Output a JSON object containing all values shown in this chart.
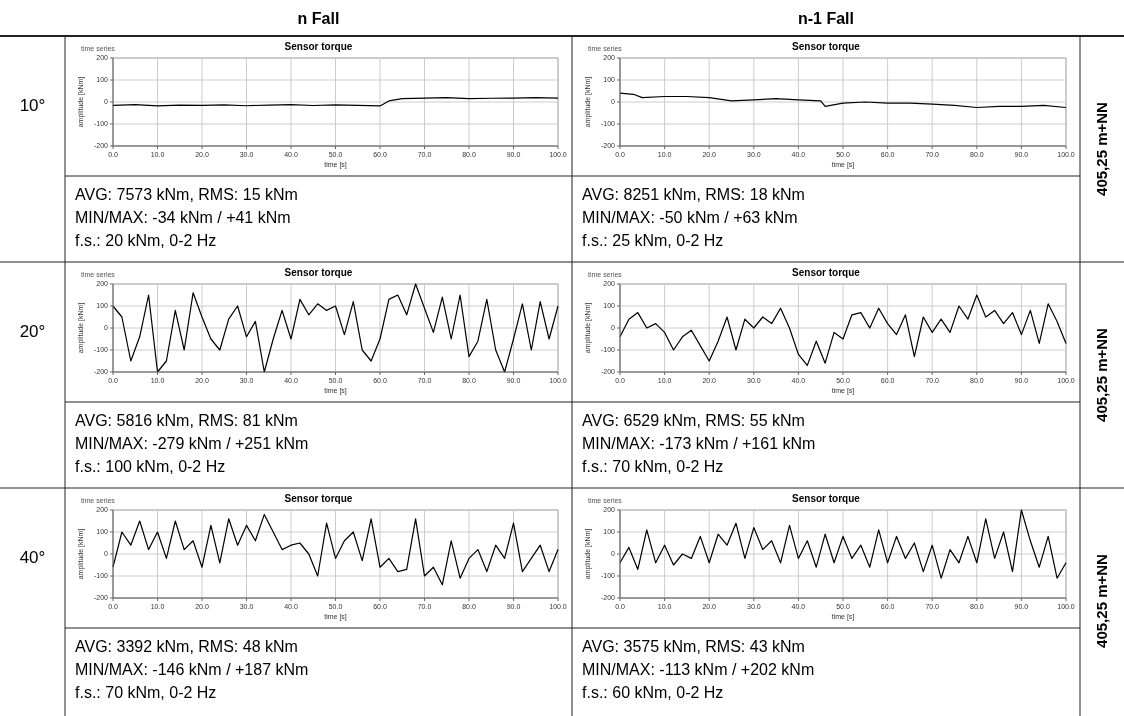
{
  "chart_data": [
    {
      "type": "line",
      "title": "Sensor torque",
      "subtitle": "time series",
      "xlabel": "time [s]",
      "ylabel": "amplitude [kNm]",
      "color": "#000000",
      "grid": true,
      "marker": "none",
      "line_style": "solid",
      "x": [
        0,
        5,
        10,
        15,
        20,
        25,
        30,
        35,
        40,
        45,
        50,
        55,
        60,
        62,
        65,
        70,
        75,
        80,
        85,
        90,
        95,
        100
      ],
      "values": [
        -15,
        -12,
        -18,
        -14,
        -15,
        -13,
        -17,
        -14,
        -12,
        -16,
        -13,
        -15,
        -18,
        5,
        15,
        18,
        20,
        15,
        17,
        18,
        20,
        18
      ],
      "xlim": [
        0,
        100
      ],
      "xticks": [
        {
          "value": 0,
          "label": "0.0"
        },
        {
          "value": 10,
          "label": "10.0"
        },
        {
          "value": 20,
          "label": "20.0"
        },
        {
          "value": 30,
          "label": "30.0"
        },
        {
          "value": 40,
          "label": "40.0"
        },
        {
          "value": 50,
          "label": "50.0"
        },
        {
          "value": 60,
          "label": "60.0"
        },
        {
          "value": 70,
          "label": "70.0"
        },
        {
          "value": 80,
          "label": "80.0"
        },
        {
          "value": 90,
          "label": "90.0"
        },
        {
          "value": 100,
          "label": "100.0"
        }
      ],
      "ylim": [
        -200,
        200
      ],
      "yticks": [
        -200,
        -100,
        0,
        100,
        200
      ],
      "annotations": [
        "AVG: 7573 kNm, RMS: 15 kNm",
        "MIN/MAX: -34 kNm / +41 kNm",
        "f.s.: 20 kNm, 0-2 Hz"
      ]
    },
    {
      "type": "line",
      "title": "Sensor torque",
      "subtitle": "time series",
      "xlabel": "time [s]",
      "ylabel": "amplitude [kNm]",
      "color": "#000000",
      "grid": true,
      "marker": "none",
      "line_style": "solid",
      "x": [
        0,
        3,
        5,
        10,
        15,
        20,
        25,
        30,
        35,
        40,
        45,
        46,
        50,
        55,
        60,
        65,
        70,
        75,
        80,
        85,
        90,
        95,
        100
      ],
      "values": [
        40,
        35,
        20,
        25,
        25,
        20,
        5,
        10,
        15,
        10,
        5,
        -20,
        -5,
        0,
        -5,
        -5,
        -10,
        -15,
        -25,
        -20,
        -20,
        -15,
        -25
      ],
      "xlim": [
        0,
        100
      ],
      "xticks": [
        {
          "value": 0,
          "label": "0.0"
        },
        {
          "value": 10,
          "label": "10.0"
        },
        {
          "value": 20,
          "label": "20.0"
        },
        {
          "value": 30,
          "label": "30.0"
        },
        {
          "value": 40,
          "label": "40.0"
        },
        {
          "value": 50,
          "label": "50.0"
        },
        {
          "value": 60,
          "label": "60.0"
        },
        {
          "value": 70,
          "label": "70.0"
        },
        {
          "value": 80,
          "label": "80.0"
        },
        {
          "value": 90,
          "label": "90.0"
        },
        {
          "value": 100,
          "label": "100.0"
        }
      ],
      "ylim": [
        -200,
        200
      ],
      "yticks": [
        -200,
        -100,
        0,
        100,
        200
      ],
      "annotations": [
        "AVG: 8251 kNm, RMS: 18 kNm",
        "MIN/MAX: -50 kNm / +63 kNm",
        "f.s.: 25 kNm, 0-2 Hz"
      ]
    },
    {
      "type": "line",
      "title": "Sensor torque",
      "subtitle": "time series",
      "xlabel": "time [s]",
      "ylabel": "amplitude [kNm]",
      "color": "#000000",
      "grid": true,
      "marker": "none",
      "line_style": "solid",
      "x": [
        0,
        2,
        4,
        6,
        8,
        10,
        12,
        14,
        16,
        18,
        20,
        22,
        24,
        26,
        28,
        30,
        32,
        34,
        36,
        38,
        40,
        42,
        44,
        46,
        48,
        50,
        52,
        54,
        56,
        58,
        60,
        62,
        64,
        66,
        68,
        70,
        72,
        74,
        76,
        78,
        80,
        82,
        84,
        86,
        88,
        90,
        92,
        94,
        96,
        98,
        100
      ],
      "values": [
        100,
        50,
        -150,
        -40,
        150,
        -200,
        -150,
        80,
        -100,
        160,
        50,
        -50,
        -100,
        40,
        100,
        -40,
        30,
        -200,
        -50,
        80,
        -50,
        130,
        60,
        110,
        80,
        100,
        -30,
        120,
        -100,
        -150,
        -50,
        130,
        150,
        60,
        200,
        90,
        -20,
        140,
        -50,
        150,
        -130,
        -60,
        130,
        -100,
        -200,
        -50,
        110,
        -100,
        120,
        -50,
        100
      ],
      "xlim": [
        0,
        100
      ],
      "xticks": [
        {
          "value": 0,
          "label": "0.0"
        },
        {
          "value": 10,
          "label": "10.0"
        },
        {
          "value": 20,
          "label": "20.0"
        },
        {
          "value": 30,
          "label": "30.0"
        },
        {
          "value": 40,
          "label": "40.0"
        },
        {
          "value": 50,
          "label": "50.0"
        },
        {
          "value": 60,
          "label": "60.0"
        },
        {
          "value": 70,
          "label": "70.0"
        },
        {
          "value": 80,
          "label": "80.0"
        },
        {
          "value": 90,
          "label": "90.0"
        },
        {
          "value": 100,
          "label": "100.0"
        }
      ],
      "ylim": [
        -200,
        200
      ],
      "yticks": [
        -200,
        -100,
        0,
        100,
        200
      ],
      "annotations": [
        "AVG: 5816 kNm, RMS: 81 kNm",
        "MIN/MAX: -279 kNm / +251 kNm",
        "f.s.: 100 kNm, 0-2 Hz"
      ]
    },
    {
      "type": "line",
      "title": "Sensor torque",
      "subtitle": "time series",
      "xlabel": "time [s]",
      "ylabel": "amplitude [kNm]",
      "color": "#000000",
      "grid": true,
      "marker": "none",
      "line_style": "solid",
      "x": [
        0,
        2,
        4,
        6,
        8,
        10,
        12,
        14,
        16,
        18,
        20,
        22,
        24,
        26,
        28,
        30,
        32,
        34,
        36,
        38,
        40,
        42,
        44,
        46,
        48,
        50,
        52,
        54,
        56,
        58,
        60,
        62,
        64,
        66,
        68,
        70,
        72,
        74,
        76,
        78,
        80,
        82,
        84,
        86,
        88,
        90,
        92,
        94,
        96,
        98,
        100
      ],
      "values": [
        -40,
        40,
        70,
        0,
        20,
        -20,
        -100,
        -40,
        -10,
        -80,
        -150,
        -60,
        50,
        -100,
        40,
        0,
        50,
        20,
        90,
        0,
        -120,
        -170,
        -60,
        -160,
        -20,
        -50,
        60,
        70,
        0,
        90,
        20,
        -30,
        60,
        -130,
        50,
        -20,
        40,
        -20,
        100,
        40,
        150,
        50,
        80,
        20,
        70,
        -30,
        80,
        -70,
        110,
        30,
        -70
      ],
      "xlim": [
        0,
        100
      ],
      "xticks": [
        {
          "value": 0,
          "label": "0.0"
        },
        {
          "value": 10,
          "label": "10.0"
        },
        {
          "value": 20,
          "label": "20.0"
        },
        {
          "value": 30,
          "label": "30.0"
        },
        {
          "value": 40,
          "label": "40.0"
        },
        {
          "value": 50,
          "label": "50.0"
        },
        {
          "value": 60,
          "label": "60.0"
        },
        {
          "value": 70,
          "label": "70.0"
        },
        {
          "value": 80,
          "label": "80.0"
        },
        {
          "value": 90,
          "label": "90.0"
        },
        {
          "value": 100,
          "label": "100.0"
        }
      ],
      "ylim": [
        -200,
        200
      ],
      "yticks": [
        -200,
        -100,
        0,
        100,
        200
      ],
      "annotations": [
        "AVG: 6529 kNm, RMS: 55 kNm",
        "MIN/MAX: -173 kNm / +161 kNm",
        "f.s.: 70 kNm, 0-2 Hz"
      ]
    },
    {
      "type": "line",
      "title": "Sensor torque",
      "subtitle": "time series",
      "xlabel": "time [s]",
      "ylabel": "amplitude [kNm]",
      "color": "#000000",
      "grid": true,
      "marker": "none",
      "line_style": "solid",
      "x": [
        0,
        2,
        4,
        6,
        8,
        10,
        12,
        14,
        16,
        18,
        20,
        22,
        24,
        26,
        28,
        30,
        32,
        34,
        36,
        38,
        40,
        42,
        44,
        46,
        48,
        50,
        52,
        54,
        56,
        58,
        60,
        62,
        64,
        66,
        68,
        70,
        72,
        74,
        76,
        78,
        80,
        82,
        84,
        86,
        88,
        90,
        92,
        94,
        96,
        98,
        100
      ],
      "values": [
        -60,
        100,
        40,
        150,
        20,
        100,
        -20,
        150,
        20,
        60,
        -60,
        130,
        -40,
        160,
        40,
        130,
        60,
        180,
        100,
        20,
        40,
        50,
        0,
        -100,
        140,
        -20,
        60,
        100,
        -30,
        160,
        -60,
        -20,
        -80,
        -70,
        160,
        -100,
        -60,
        -140,
        60,
        -110,
        -20,
        20,
        -80,
        40,
        -20,
        140,
        -80,
        -20,
        40,
        -80,
        20
      ],
      "xlim": [
        0,
        100
      ],
      "xticks": [
        {
          "value": 0,
          "label": "0.0"
        },
        {
          "value": 10,
          "label": "10.0"
        },
        {
          "value": 20,
          "label": "20.0"
        },
        {
          "value": 30,
          "label": "30.0"
        },
        {
          "value": 40,
          "label": "40.0"
        },
        {
          "value": 50,
          "label": "50.0"
        },
        {
          "value": 60,
          "label": "60.0"
        },
        {
          "value": 70,
          "label": "70.0"
        },
        {
          "value": 80,
          "label": "80.0"
        },
        {
          "value": 90,
          "label": "90.0"
        },
        {
          "value": 100,
          "label": "100.0"
        }
      ],
      "ylim": [
        -200,
        200
      ],
      "yticks": [
        -200,
        -100,
        0,
        100,
        200
      ],
      "annotations": [
        "AVG: 3392 kNm, RMS: 48 kNm",
        "MIN/MAX: -146 kNm / +187 kNm",
        "f.s.: 70 kNm, 0-2 Hz"
      ]
    },
    {
      "type": "line",
      "title": "Sensor torque",
      "subtitle": "time series",
      "xlabel": "time [s]",
      "ylabel": "amplitude [kNm]",
      "color": "#000000",
      "grid": true,
      "marker": "none",
      "line_style": "solid",
      "x": [
        0,
        2,
        4,
        6,
        8,
        10,
        12,
        14,
        16,
        18,
        20,
        22,
        24,
        26,
        28,
        30,
        32,
        34,
        36,
        38,
        40,
        42,
        44,
        46,
        48,
        50,
        52,
        54,
        56,
        58,
        60,
        62,
        64,
        66,
        68,
        70,
        72,
        74,
        76,
        78,
        80,
        82,
        84,
        86,
        88,
        90,
        92,
        94,
        96,
        98,
        100
      ],
      "values": [
        -40,
        30,
        -70,
        110,
        -40,
        40,
        -50,
        0,
        -20,
        80,
        -40,
        90,
        40,
        140,
        -20,
        120,
        20,
        60,
        -40,
        130,
        -20,
        60,
        -60,
        90,
        -40,
        80,
        -20,
        40,
        -60,
        110,
        -40,
        80,
        -20,
        50,
        -80,
        40,
        -110,
        20,
        -40,
        80,
        -40,
        160,
        -20,
        100,
        -80,
        200,
        60,
        -60,
        80,
        -110,
        -40
      ],
      "xlim": [
        0,
        100
      ],
      "xticks": [
        {
          "value": 0,
          "label": "0.0"
        },
        {
          "value": 10,
          "label": "10.0"
        },
        {
          "value": 20,
          "label": "20.0"
        },
        {
          "value": 30,
          "label": "30.0"
        },
        {
          "value": 40,
          "label": "40.0"
        },
        {
          "value": 50,
          "label": "50.0"
        },
        {
          "value": 60,
          "label": "60.0"
        },
        {
          "value": 70,
          "label": "70.0"
        },
        {
          "value": 80,
          "label": "80.0"
        },
        {
          "value": 90,
          "label": "90.0"
        },
        {
          "value": 100,
          "label": "100.0"
        }
      ],
      "ylim": [
        -200,
        200
      ],
      "yticks": [
        -200,
        -100,
        0,
        100,
        200
      ],
      "annotations": [
        "AVG: 3575 kNm, RMS: 43 kNm",
        "MIN/MAX: -113 kNm / +202 kNm",
        "f.s.: 60 kNm, 0-2 Hz"
      ]
    },
    {
      "type": "other",
      "annotations": [
        "n Fall",
        "n-1 Fall",
        "10°",
        "20°",
        "40°",
        "405,25 m+NN",
        "405,25 m+NN",
        "405,25 m+NN"
      ]
    }
  ]
}
